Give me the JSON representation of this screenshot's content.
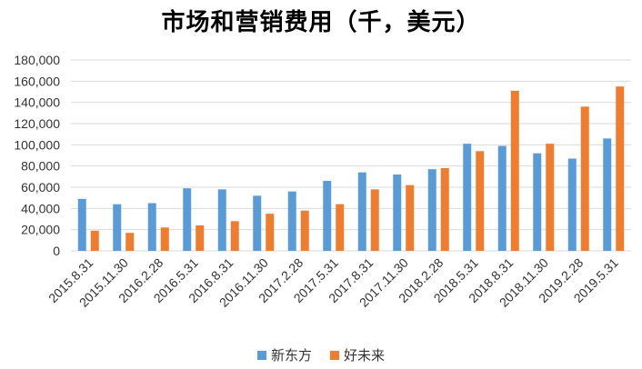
{
  "chart_data": {
    "type": "bar",
    "title": "市场和营销费用（千，美元）",
    "categories": [
      "2015.8.31",
      "2015.11.30",
      "2016.2.28",
      "2016.5.31",
      "2016.8.31",
      "2016.11.30",
      "2017.2.28",
      "2017.5.31",
      "2017.8.31",
      "2017.11.30",
      "2018.2.28",
      "2018.5.31",
      "2018.8.31",
      "2018.11.30",
      "2019.2.28",
      "2019.5.31"
    ],
    "series": [
      {
        "name": "新东方",
        "color": "#5B9BD5",
        "values": [
          49000,
          44000,
          45000,
          59000,
          58000,
          52000,
          56000,
          66000,
          74000,
          72000,
          77000,
          101000,
          99000,
          92000,
          87000,
          106000
        ]
      },
      {
        "name": "好未来",
        "color": "#ED7D31",
        "values": [
          19000,
          17000,
          22000,
          24000,
          28000,
          35000,
          38000,
          44000,
          58000,
          62000,
          78000,
          94000,
          151000,
          101000,
          136000,
          155000
        ]
      }
    ],
    "ylim": [
      0,
      180000
    ],
    "yticks": [
      "0",
      "20,000",
      "40,000",
      "60,000",
      "80,000",
      "100,000",
      "120,000",
      "140,000",
      "160,000",
      "180,000"
    ],
    "grid": true,
    "legend_position": "bottom"
  }
}
